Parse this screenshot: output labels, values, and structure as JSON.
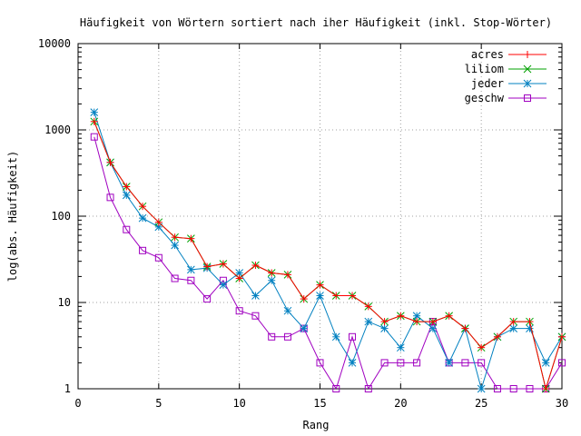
{
  "chart_data": {
    "type": "line",
    "title": "Häufigkeit von Wörtern sortiert nach iher Häufigkeit (inkl. Stop-Wörter)",
    "xlabel": "Rang",
    "ylabel": "log(abs. Häufigkeit)",
    "xlim": [
      0,
      30
    ],
    "ylim": [
      1,
      10000
    ],
    "y_scale": "log",
    "grid": true,
    "legend_position": "top-right",
    "x_ticks": [
      "0",
      "5",
      "10",
      "15",
      "20",
      "25",
      "30"
    ],
    "y_ticks": [
      "1",
      "10",
      "100",
      "1000",
      "10000"
    ],
    "x": [
      1,
      2,
      3,
      4,
      5,
      6,
      7,
      8,
      9,
      10,
      11,
      12,
      13,
      14,
      15,
      16,
      17,
      18,
      19,
      20,
      21,
      22,
      23,
      24,
      25,
      26,
      27,
      28,
      29,
      30
    ],
    "series": [
      {
        "name": "acres",
        "color": "#ff0000",
        "marker": "plus",
        "values": [
          1250,
          420,
          220,
          130,
          85,
          57,
          55,
          26,
          28,
          19,
          27,
          22,
          21,
          11,
          16,
          12,
          12,
          9,
          6,
          7,
          6,
          6,
          7,
          5,
          3,
          4,
          6,
          6,
          1,
          4
        ]
      },
      {
        "name": "liliom",
        "color": "#00a000",
        "marker": "cross",
        "values": [
          1250,
          420,
          220,
          130,
          85,
          57,
          55,
          26,
          28,
          19,
          27,
          22,
          21,
          11,
          16,
          12,
          12,
          9,
          6,
          7,
          6,
          6,
          7,
          5,
          3,
          4,
          6,
          6,
          1,
          4
        ]
      },
      {
        "name": "jeder",
        "color": "#0080c0",
        "marker": "star",
        "values": [
          1600,
          420,
          175,
          95,
          75,
          46,
          24,
          25,
          16,
          22,
          12,
          18,
          8,
          5,
          12,
          4,
          2,
          6,
          5,
          3,
          7,
          5,
          2,
          5,
          1,
          4,
          5,
          5,
          2,
          4
        ]
      },
      {
        "name": "geschw",
        "color": "#a000c0",
        "marker": "square",
        "values": [
          830,
          165,
          70,
          40,
          33,
          19,
          18,
          11,
          18,
          8,
          7,
          4,
          4,
          5,
          2,
          1,
          4,
          1,
          2,
          2,
          2,
          6,
          2,
          2,
          2,
          1,
          1,
          1,
          1,
          2
        ]
      }
    ]
  }
}
